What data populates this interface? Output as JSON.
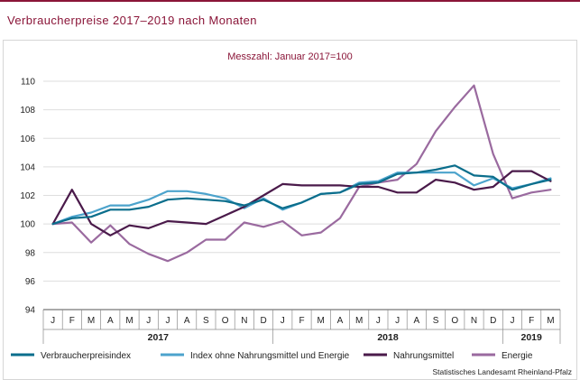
{
  "header": {
    "title": "Verbraucherpreise 2017–2019 nach Monaten"
  },
  "chart_data": {
    "type": "line",
    "subtitle": "Messzahl: Januar 2017=100",
    "ylim": [
      94,
      110
    ],
    "yticks": [
      94,
      96,
      98,
      100,
      102,
      104,
      106,
      108,
      110
    ],
    "month_labels": [
      "J",
      "F",
      "M",
      "A",
      "M",
      "J",
      "J",
      "A",
      "S",
      "O",
      "N",
      "D",
      "J",
      "F",
      "M",
      "A",
      "M",
      "J",
      "J",
      "A",
      "S",
      "O",
      "N",
      "D",
      "J",
      "F",
      "M"
    ],
    "year_labels": [
      "2017",
      "2018",
      "2019"
    ],
    "grid": "horizontal",
    "legend_position": "bottom",
    "series": [
      {
        "name": "Verbraucherpreisindex",
        "color": "#0b6e8c",
        "values": [
          100.0,
          100.4,
          100.5,
          101.0,
          101.0,
          101.2,
          101.7,
          101.8,
          101.7,
          101.6,
          101.3,
          101.7,
          101.1,
          101.5,
          102.1,
          102.2,
          102.8,
          102.9,
          103.5,
          103.6,
          103.8,
          104.1,
          103.4,
          103.3,
          102.4,
          102.8,
          103.1
        ]
      },
      {
        "name": "Index ohne Nahrungsmittel und Energie",
        "color": "#4ca3cc",
        "values": [
          100.0,
          100.5,
          100.8,
          101.3,
          101.3,
          101.7,
          102.3,
          102.3,
          102.1,
          101.8,
          101.1,
          101.8,
          101.0,
          101.5,
          102.1,
          102.2,
          102.9,
          103.0,
          103.6,
          103.6,
          103.6,
          103.6,
          102.7,
          103.2,
          102.5,
          102.8,
          103.2
        ]
      },
      {
        "name": "Nahrungsmittel",
        "color": "#4a1a4a",
        "values": [
          100.0,
          102.4,
          100.0,
          99.2,
          99.9,
          99.7,
          100.2,
          100.1,
          100.0,
          100.6,
          101.2,
          102.0,
          102.8,
          102.7,
          102.7,
          102.7,
          102.6,
          102.6,
          102.2,
          102.2,
          103.1,
          102.9,
          102.4,
          102.6,
          103.7,
          103.7,
          103.0
        ]
      },
      {
        "name": "Energie",
        "color": "#9a6a9f",
        "values": [
          100.0,
          100.1,
          98.7,
          99.9,
          98.6,
          97.9,
          97.4,
          98.0,
          98.9,
          98.9,
          100.1,
          99.8,
          100.2,
          99.2,
          99.4,
          100.4,
          102.6,
          102.9,
          103.1,
          104.2,
          106.5,
          108.2,
          109.7,
          104.9,
          101.8,
          102.2,
          102.4
        ]
      }
    ]
  },
  "source": "Statistisches Landesamt Rheinland-Pfalz"
}
